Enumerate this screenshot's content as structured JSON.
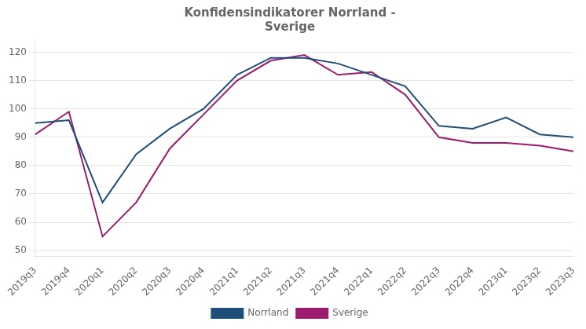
{
  "chart_data": {
    "type": "line",
    "title": "Konfidensindikatorer Norrland -\nSverige",
    "categories": [
      "2019q3",
      "2019q4",
      "2020q1",
      "2020q2",
      "2020q3",
      "2020q4",
      "2021q1",
      "2021q2",
      "2021q3",
      "2021q4",
      "2022q1",
      "2022q2",
      "2022q3",
      "2022q4",
      "2023q1",
      "2023q2",
      "2023q3"
    ],
    "series": [
      {
        "name": "Norrland",
        "color": "#1f4e79",
        "values": [
          95,
          96,
          67,
          84,
          93,
          100,
          112,
          118,
          118,
          116,
          112,
          108,
          94,
          93,
          97,
          91,
          90
        ]
      },
      {
        "name": "Sverige",
        "color": "#9b1c6e",
        "values": [
          91,
          99,
          55,
          67,
          86,
          98,
          110,
          117,
          119,
          112,
          113,
          105,
          90,
          88,
          88,
          87,
          85
        ]
      }
    ],
    "ylim": [
      48,
      124
    ],
    "yticks": [
      50,
      60,
      70,
      80,
      90,
      100,
      110,
      120
    ],
    "grid": true,
    "legend": "bottom"
  }
}
